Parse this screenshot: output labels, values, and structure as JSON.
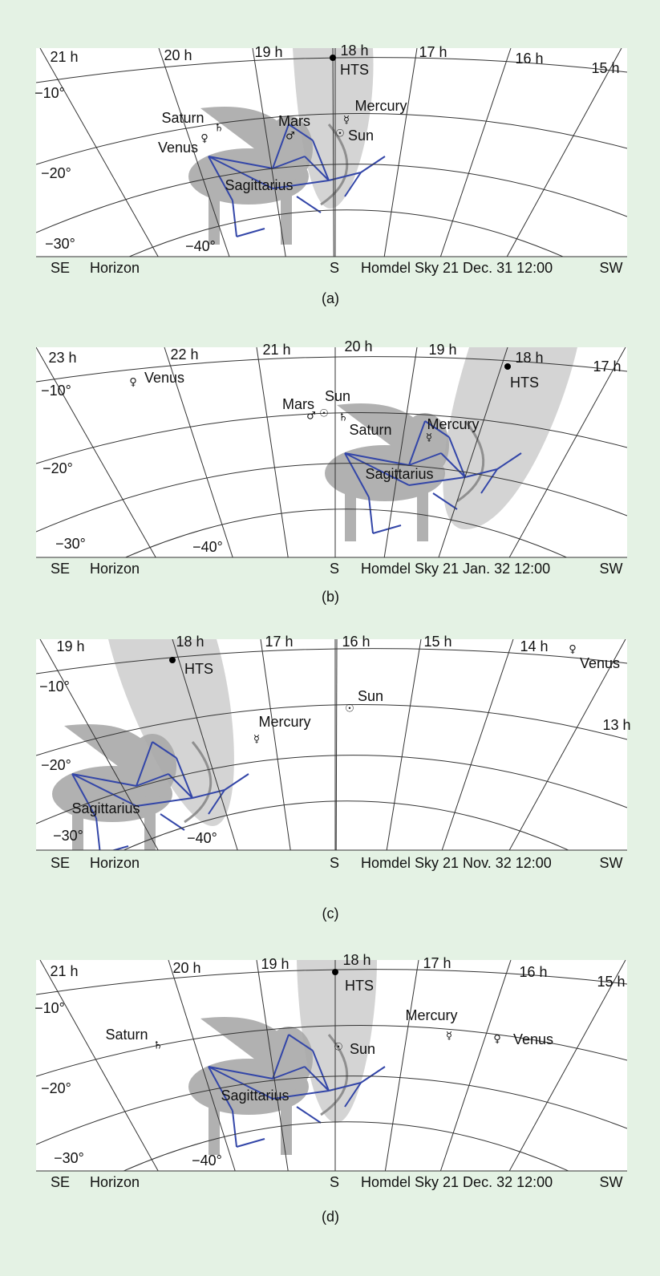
{
  "panels": [
    {
      "ra_labels": [
        "21 h",
        "20 h",
        "19 h",
        "18 h",
        "17 h",
        "16 h",
        "15 h"
      ],
      "dec_labels": [
        "−10°",
        "−20°",
        "−30°",
        "−40°"
      ],
      "hts": "HTS",
      "bodies": [
        {
          "name": "Saturn",
          "symbol": "♄"
        },
        {
          "name": "Venus",
          "symbol": "♀"
        },
        {
          "name": "Mars",
          "symbol": "♂"
        },
        {
          "name": "Mercury",
          "symbol": "☿"
        },
        {
          "name": "Sun",
          "symbol": "☉"
        }
      ],
      "constellation": "Sagittarius",
      "footer": {
        "left": "SE",
        "horizon": "Horizon",
        "south": "S",
        "caption": "Homdel Sky 21 Dec. 31 12:00",
        "right": "SW"
      },
      "label": "(a)"
    },
    {
      "ra_labels": [
        "23 h",
        "22 h",
        "21 h",
        "20 h",
        "19 h",
        "18 h",
        "17 h"
      ],
      "dec_labels": [
        "−10°",
        "−20°",
        "−30°",
        "−40°"
      ],
      "hts": "HTS",
      "bodies": [
        {
          "name": "Venus",
          "symbol": "♀"
        },
        {
          "name": "Mars",
          "symbol": "♂"
        },
        {
          "name": "Sun",
          "symbol": "☉"
        },
        {
          "name": "Saturn",
          "symbol": "♄"
        },
        {
          "name": "Mercury",
          "symbol": "☿"
        }
      ],
      "constellation": "Sagittarius",
      "footer": {
        "left": "SE",
        "horizon": "Horizon",
        "south": "S",
        "caption": "Homdel Sky 21 Jan. 32 12:00",
        "right": "SW"
      },
      "label": "(b)"
    },
    {
      "ra_labels": [
        "19 h",
        "18 h",
        "17 h",
        "16 h",
        "15 h",
        "14 h",
        "13 h"
      ],
      "dec_labels": [
        "−10°",
        "−20°",
        "−30°",
        "−40°"
      ],
      "hts": "HTS",
      "bodies": [
        {
          "name": "Venus",
          "symbol": "♀"
        },
        {
          "name": "Sun",
          "symbol": "☉"
        },
        {
          "name": "Mercury",
          "symbol": "☿"
        }
      ],
      "constellation": "Sagittarius",
      "footer": {
        "left": "SE",
        "horizon": "Horizon",
        "south": "S",
        "caption": "Homdel Sky 21 Nov. 32 12:00",
        "right": "SW"
      },
      "label": "(c)"
    },
    {
      "ra_labels": [
        "21 h",
        "20 h",
        "19 h",
        "18 h",
        "17 h",
        "16 h",
        "15 h"
      ],
      "dec_labels": [
        "−10°",
        "−20°",
        "−30°",
        "−40°"
      ],
      "hts": "HTS",
      "bodies": [
        {
          "name": "Saturn",
          "symbol": "♄"
        },
        {
          "name": "Sun",
          "symbol": "☉"
        },
        {
          "name": "Mercury",
          "symbol": "☿"
        },
        {
          "name": "Venus",
          "symbol": "♀"
        }
      ],
      "constellation": "Sagittarius",
      "footer": {
        "left": "SE",
        "horizon": "Horizon",
        "south": "S",
        "caption": "Homdel Sky 21 Dec. 32 12:00",
        "right": "SW"
      },
      "label": "(d)"
    }
  ]
}
